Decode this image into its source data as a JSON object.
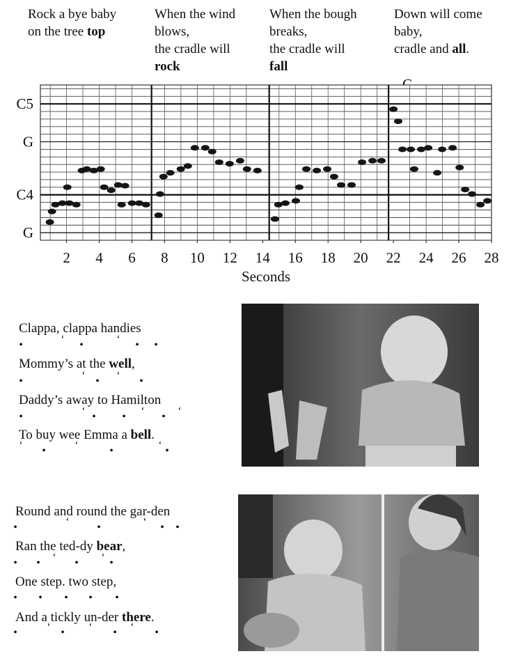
{
  "top_lyrics": [
    [
      {
        "before": "Rock a bye baby"
      },
      {
        "before": "on the tree ",
        "bold": "top"
      }
    ],
    [
      {
        "before": "When the wind"
      },
      {
        "before": "blows,"
      },
      {
        "before": "the cradle will"
      },
      {
        "bold": "rock"
      }
    ],
    [
      {
        "before": "When the bough"
      },
      {
        "before": "breaks,"
      },
      {
        "before": "the cradle will"
      },
      {
        "bold": "fall"
      }
    ],
    [
      {
        "before": "Down will come"
      },
      {
        "before": "baby,"
      },
      {
        "before": "cradle and ",
        "bold": "all",
        "after": "."
      }
    ]
  ],
  "chart_data": {
    "type": "scatter",
    "xlabel": "Seconds",
    "annotation": "C",
    "xlim": [
      0.4,
      28
    ],
    "ylim": [
      -6,
      14.5
    ],
    "xticks": [
      2,
      4,
      6,
      8,
      10,
      12,
      14,
      16,
      18,
      20,
      22,
      24,
      26,
      28
    ],
    "yticks": [
      {
        "value": 12,
        "label": "C5"
      },
      {
        "value": 7,
        "label": "G"
      },
      {
        "value": 0,
        "label": "C4"
      },
      {
        "value": -5,
        "label": "G"
      }
    ],
    "ygrid": [
      -6,
      -5,
      -4,
      -3,
      -2,
      -1,
      0,
      1,
      2,
      3,
      4,
      5,
      6,
      7,
      8,
      9,
      10,
      11,
      12,
      13,
      14
    ],
    "xgrid": [
      1,
      2,
      3,
      4,
      5,
      6,
      8,
      9,
      10,
      11,
      12,
      13,
      15,
      16,
      17,
      18,
      19,
      20,
      21,
      23,
      24,
      25,
      26,
      27
    ],
    "dividers": [
      7.2,
      14.4,
      21.7
    ],
    "series": [
      {
        "color": "#151515",
        "x": [
          0.98,
          1.11,
          1.32,
          1.75,
          2.17,
          2.6,
          2.05,
          2.94,
          3.24,
          3.67,
          4.09,
          4.3,
          4.73,
          5.16,
          5.58,
          5.37,
          6.01,
          6.44,
          6.86,
          7.63,
          7.72,
          7.93,
          8.35,
          8.99,
          9.42,
          9.85,
          10.49,
          10.91,
          11.34,
          11.98,
          12.62,
          13.04,
          13.68,
          14.75,
          14.96,
          15.39,
          16.03,
          16.24,
          16.67,
          17.31,
          17.95,
          18.37,
          18.8,
          19.44,
          20.08,
          20.72,
          21.27,
          22.0,
          22.29,
          22.55,
          23.06,
          23.27,
          23.7,
          24.13,
          24.68,
          24.98,
          25.62,
          26.05,
          26.39,
          26.81,
          27.32,
          27.75
        ],
        "values": [
          -3.6,
          -2.2,
          -1.3,
          -1.1,
          -1.1,
          -1.3,
          1.0,
          3.2,
          3.4,
          3.2,
          3.4,
          1.0,
          0.6,
          1.3,
          1.2,
          -1.3,
          -1.1,
          -1.1,
          -1.3,
          -2.7,
          0.1,
          2.4,
          2.9,
          3.4,
          3.8,
          6.2,
          6.2,
          5.7,
          4.3,
          4.1,
          4.5,
          3.4,
          3.2,
          -3.2,
          -1.3,
          -1.1,
          -0.8,
          1.0,
          3.4,
          3.2,
          3.4,
          2.4,
          1.3,
          1.3,
          4.3,
          4.5,
          4.5,
          11.3,
          9.7,
          6.0,
          6.0,
          3.4,
          6.0,
          6.2,
          2.9,
          6.0,
          6.2,
          3.6,
          0.7,
          0.1,
          -1.3,
          -0.8
        ]
      }
    ]
  },
  "songs": [
    {
      "lines": [
        {
          "before": "Clappa, clappa handies"
        },
        {
          "before": "Mommy’s at the ",
          "bold": "well",
          "after": ","
        },
        {
          "before": "Daddy’s away to Hamilton"
        },
        {
          "before": "To buy wee Emma a ",
          "bold": "bell",
          "after": "."
        }
      ],
      "beats": [
        [
          "•",
          "‘",
          "•",
          "‘",
          "•",
          "•"
        ],
        [
          "•",
          "‘",
          "•",
          "‘",
          "•"
        ],
        [
          "•",
          "‘",
          "•",
          "•",
          "‘",
          "•",
          "‘"
        ],
        [
          "‘",
          "•",
          "‘",
          "•",
          "‘",
          "•"
        ]
      ]
    },
    {
      "lines": [
        {
          "before": "Round and round the gar-den"
        },
        {
          "before": "Ran the ted-dy ",
          "bold": "bear",
          "after": ","
        },
        {
          "before": "One step. two step,"
        },
        {
          "before": "And a tickly un-der ",
          "bold": "there",
          "after": "."
        }
      ],
      "beats": [
        [
          "•",
          "‘",
          "•",
          "‘",
          "•",
          "•"
        ],
        [
          "•",
          "•",
          "‘",
          "•",
          "‘",
          "•"
        ],
        [
          "•",
          "•",
          "•",
          "•",
          "•"
        ],
        [
          "•",
          "‘",
          "•",
          "‘",
          "•",
          "‘",
          "•"
        ]
      ]
    }
  ]
}
